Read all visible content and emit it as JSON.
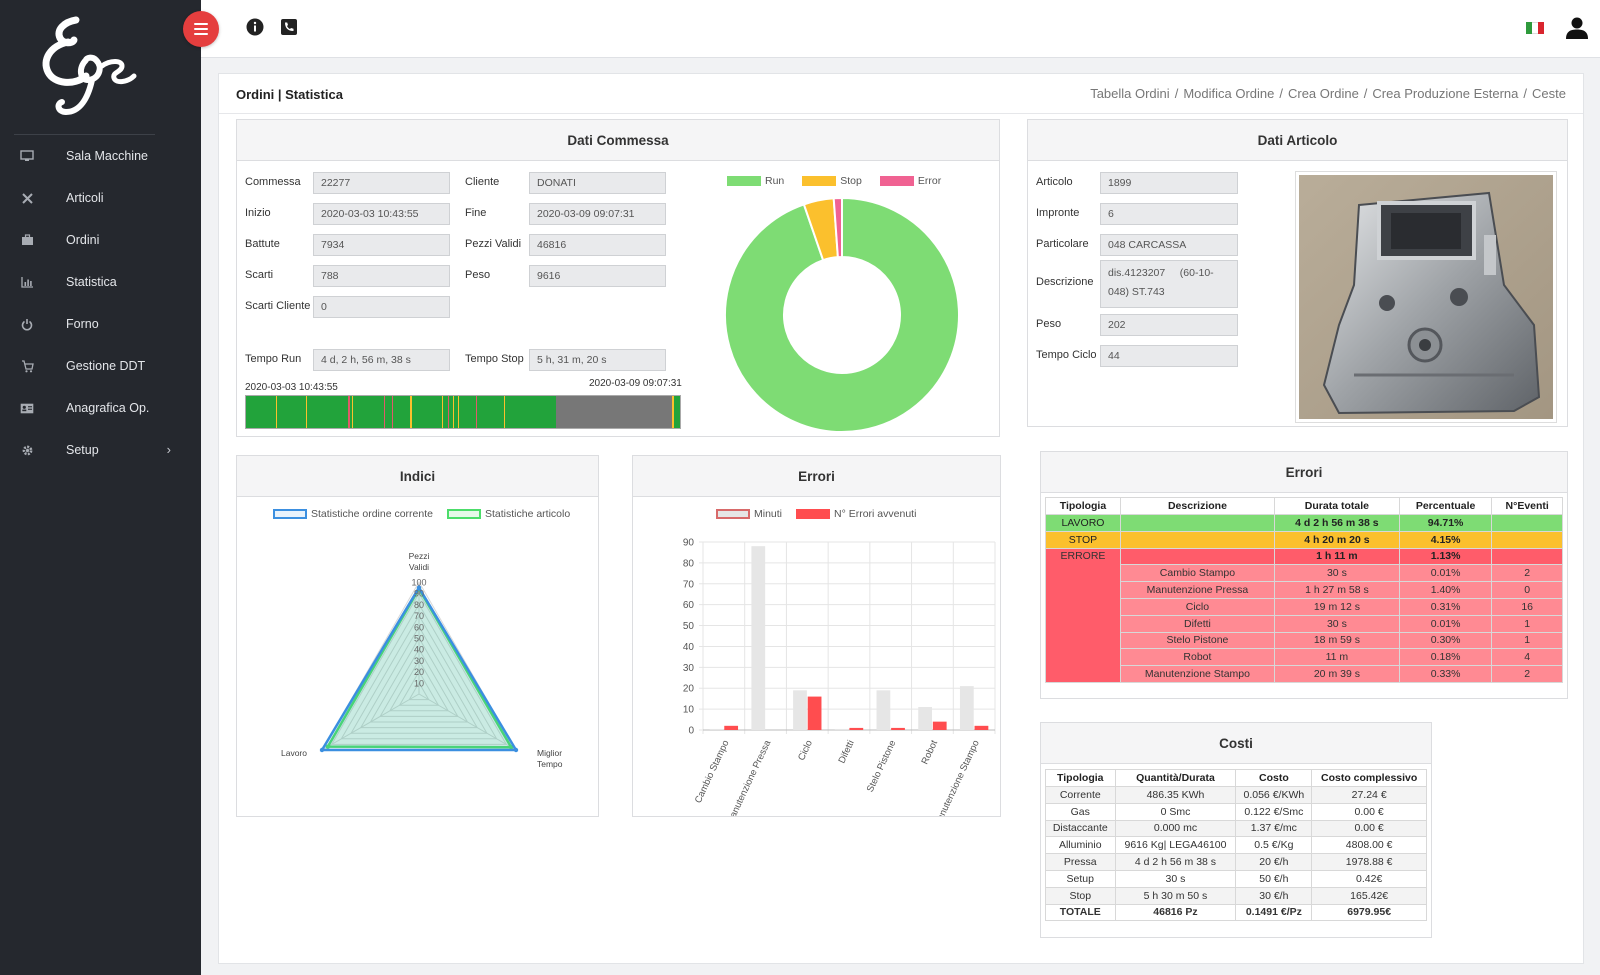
{
  "sidebar": {
    "items": [
      {
        "label": "Sala Macchine",
        "icon": "monitor-icon"
      },
      {
        "label": "Articoli",
        "icon": "tools-icon"
      },
      {
        "label": "Ordini",
        "icon": "briefcase-icon"
      },
      {
        "label": "Statistica",
        "icon": "bar-chart-icon"
      },
      {
        "label": "Forno",
        "icon": "power-icon"
      },
      {
        "label": "Gestione DDT",
        "icon": "cart-icon"
      },
      {
        "label": "Anagrafica Op.",
        "icon": "id-card-icon"
      },
      {
        "label": "Setup",
        "icon": "gear-icon",
        "chevron": "›"
      }
    ]
  },
  "header": {
    "title": "Ordini | Statistica",
    "breadcrumbs": [
      "Tabella Ordini",
      "Modifica Ordine",
      "Crea Ordine",
      "Crea Produzione Esterna",
      "Ceste"
    ]
  },
  "commessa": {
    "title": "Dati Commessa",
    "fields": {
      "commessa": {
        "label": "Commessa",
        "value": "22277"
      },
      "cliente": {
        "label": "Cliente",
        "value": "DONATI"
      },
      "inizio": {
        "label": "Inizio",
        "value": "2020-03-03 10:43:55"
      },
      "fine": {
        "label": "Fine",
        "value": "2020-03-09 09:07:31"
      },
      "battute": {
        "label": "Battute",
        "value": "7934"
      },
      "pezzi_validi": {
        "label": "Pezzi Validi",
        "value": "46816"
      },
      "scarti": {
        "label": "Scarti",
        "value": "788"
      },
      "peso": {
        "label": "Peso",
        "value": "9616"
      },
      "scarti_cliente": {
        "label": "Scarti Cliente",
        "value": "0"
      },
      "tempo_run": {
        "label": "Tempo Run",
        "value": "4 d, 2 h, 56 m, 38 s"
      },
      "tempo_stop": {
        "label": "Tempo Stop",
        "value": "5 h, 31 m, 20 s"
      }
    },
    "timeline_start": "2020-03-03 10:43:55",
    "timeline_end": "2020-03-09 09:07:31"
  },
  "articolo": {
    "title": "Dati Articolo",
    "fields": {
      "articolo": {
        "label": "Articolo",
        "value": "1899"
      },
      "impronte": {
        "label": "Impronte",
        "value": "6"
      },
      "particolare": {
        "label": "Particolare",
        "value": "048 CARCASSA"
      },
      "descrizione": {
        "label": "Descrizione",
        "value": "dis.4123207     (60-10-048) ST.743"
      },
      "peso": {
        "label": "Peso",
        "value": "202"
      },
      "tempo_ciclo": {
        "label": "Tempo Ciclo",
        "value": "44"
      }
    }
  },
  "indici": {
    "title": "Indici"
  },
  "errori_chart": {
    "title": "Errori"
  },
  "errori_table": {
    "title": "Errori",
    "headers": [
      "Tipologia",
      "Descrizione",
      "Durata totale",
      "Percentuale",
      "N°Eventi"
    ],
    "summary": [
      {
        "tipo": "LAVORO",
        "durata": "4 d 2 h 56 m 38 s",
        "perc": "94.71%",
        "color": "#7edc74"
      },
      {
        "tipo": "STOP",
        "durata": "4 h 20 m 20 s",
        "perc": "4.15%",
        "color": "#fbc02d"
      },
      {
        "tipo": "ERRORE",
        "durata": "1 h 11 m",
        "perc": "1.13%",
        "color": "#ff5c6a"
      }
    ],
    "details": [
      {
        "desc": "Cambio Stampo",
        "durata": "30 s",
        "perc": "0.01%",
        "n": "2"
      },
      {
        "desc": "Manutenzione Pressa",
        "durata": "1 h 27 m 58 s",
        "perc": "1.40%",
        "n": "0"
      },
      {
        "desc": "Ciclo",
        "durata": "19 m 12 s",
        "perc": "0.31%",
        "n": "16"
      },
      {
        "desc": "Difetti",
        "durata": "30 s",
        "perc": "0.01%",
        "n": "1"
      },
      {
        "desc": "Stelo Pistone",
        "durata": "18 m 59 s",
        "perc": "0.30%",
        "n": "1"
      },
      {
        "desc": "Robot",
        "durata": "11 m",
        "perc": "0.18%",
        "n": "4"
      },
      {
        "desc": "Manutenzione Stampo",
        "durata": "20 m 39 s",
        "perc": "0.33%",
        "n": "2"
      }
    ]
  },
  "costi": {
    "title": "Costi",
    "headers": [
      "Tipologia",
      "Quantità/Durata",
      "Costo",
      "Costo complessivo"
    ],
    "rows": [
      [
        "Corrente",
        "486.35 KWh",
        "0.056 €/KWh",
        "27.24 €"
      ],
      [
        "Gas",
        "0 Smc",
        "0.122 €/Smc",
        "0.00 €"
      ],
      [
        "Distaccante",
        "0.000 mc",
        "1.37 €/mc",
        "0.00 €"
      ],
      [
        "Alluminio",
        "9616 Kg| LEGA46100",
        "0.5 €/Kg",
        "4808.00 €"
      ],
      [
        "Pressa",
        "4 d 2 h 56 m 38 s",
        "20 €/h",
        "1978.88 €"
      ],
      [
        "Setup",
        "30 s",
        "50 €/h",
        "0.42€"
      ],
      [
        "Stop",
        "5 h 30 m 50 s",
        "30 €/h",
        "165.42€"
      ]
    ],
    "total": [
      "TOTALE",
      "46816 Pz",
      "0.1491 €/Pz",
      "6979.95€"
    ]
  },
  "chart_data": [
    {
      "type": "pie",
      "variant": "doughnut",
      "labels": [
        "Run",
        "Stop",
        "Error"
      ],
      "values": [
        94.71,
        4.15,
        1.13
      ],
      "colors": [
        "#7edc74",
        "#fbc02d",
        "#f06292"
      ],
      "legend": "top"
    },
    {
      "type": "radar",
      "labels": [
        "Pezzi Validi",
        "Miglior Tempo",
        "Lavoro"
      ],
      "label_lines": [
        [
          "Pezzi",
          "Validi"
        ],
        [
          "Miglior",
          "Tempo"
        ],
        [
          "Lavoro"
        ]
      ],
      "ticks": [
        10,
        20,
        30,
        40,
        50,
        60,
        70,
        80,
        90,
        100
      ],
      "ylim": [
        0,
        100
      ],
      "series": [
        {
          "name": "Statistiche ordine corrente",
          "values": [
            95,
            100,
            100
          ],
          "color": "#3b8fe0"
        },
        {
          "name": "Statistiche articolo",
          "values": [
            94,
            95,
            94
          ],
          "color": "#4cdd6a"
        }
      ],
      "legend": "top"
    },
    {
      "type": "bar",
      "categories": [
        "Cambio Stampo",
        "Manutenzione Pressa",
        "Ciclo",
        "Difetti",
        "Stelo Pistone",
        "Robot",
        "Manutenzione Stampo"
      ],
      "series": [
        {
          "name": "Minuti",
          "values": [
            0.5,
            88,
            19,
            0.5,
            19,
            11,
            21
          ],
          "color": "#e6e6e6",
          "border": "#d86a6a"
        },
        {
          "name": "N° Errori avvenuti",
          "values": [
            2,
            0,
            16,
            1,
            1,
            4,
            2
          ],
          "color": "#ff4d4f"
        }
      ],
      "yticks": [
        0,
        10,
        20,
        30,
        40,
        50,
        60,
        70,
        80,
        90
      ],
      "ylim": [
        0,
        90
      ],
      "grid": true,
      "legend": "top"
    }
  ]
}
